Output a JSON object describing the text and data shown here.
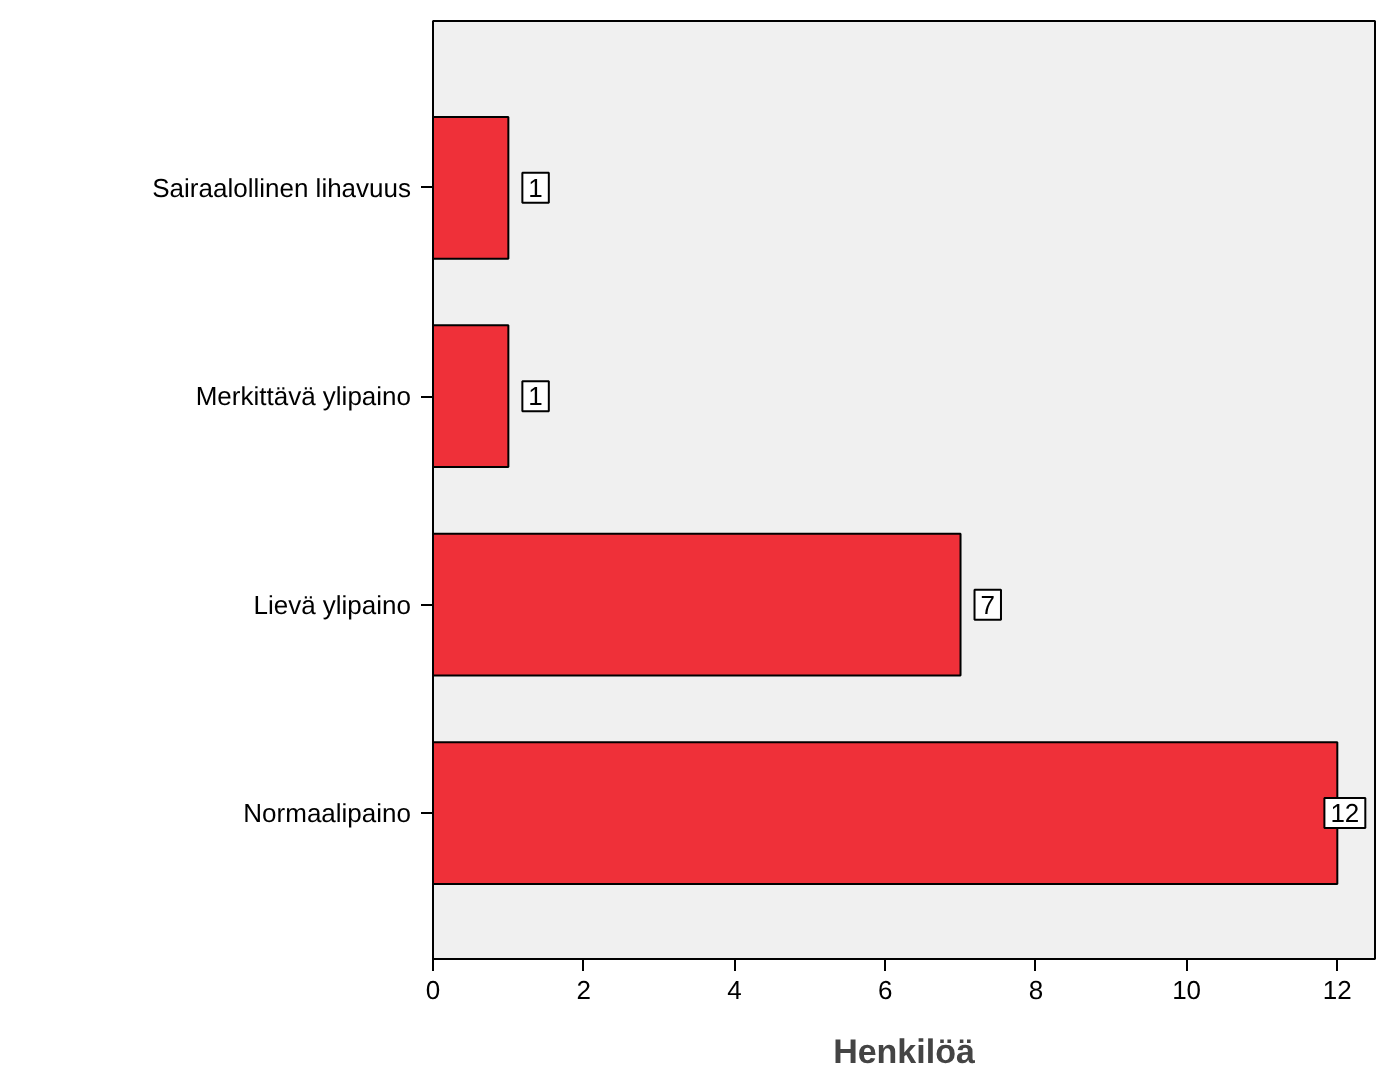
{
  "chart_data": {
    "type": "bar",
    "orientation": "horizontal",
    "xlabel": "Henkilöä",
    "categories": [
      "Sairaalollinen lihavuus",
      "Merkittävä ylipaino",
      "Lievä ylipaino",
      "Normaalipaino"
    ],
    "values": [
      1,
      1,
      7,
      12
    ],
    "color": "#ef3039",
    "xlim": [
      0,
      12.5
    ],
    "xticks": [
      0,
      2,
      4,
      6,
      8,
      10,
      12
    ],
    "grid": false,
    "data_labels": true
  }
}
